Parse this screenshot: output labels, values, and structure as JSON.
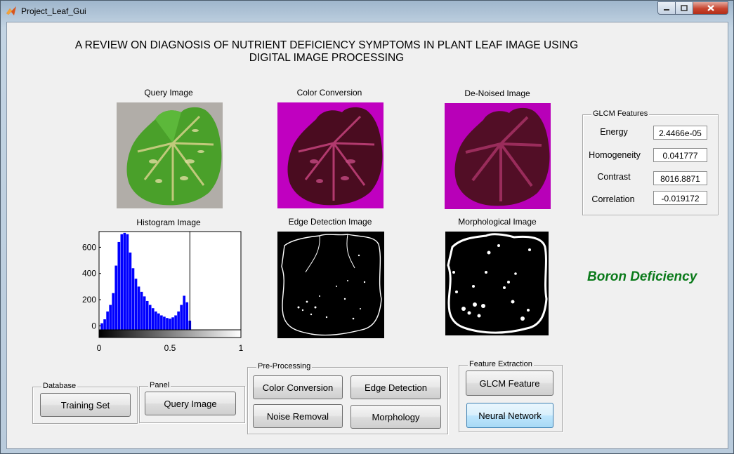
{
  "window": {
    "title": "Project_Leaf_Gui",
    "heading_line1": "A REVIEW ON DIAGNOSIS OF NUTRIENT DEFICIENCY SYMPTOMS IN PLANT LEAF IMAGE USING",
    "heading_line2": "DIGITAL IMAGE PROCESSING"
  },
  "images": {
    "query": "Query Image",
    "color": "Color Conversion",
    "denoised": "De-Noised Image",
    "histogram": "Histogram Image",
    "edge": "Edge Detection Image",
    "morph": "Morphological Image"
  },
  "glcm": {
    "title": "GLCM Features",
    "features": [
      {
        "label": "Energy",
        "value": "2.4466e-05"
      },
      {
        "label": "Homogeneity",
        "value": "0.041777"
      },
      {
        "label": "Contrast",
        "value": "8016.8871"
      },
      {
        "label": "Correlation",
        "value": "-0.019172"
      }
    ]
  },
  "result": "Boron Deficiency",
  "panels": {
    "database": {
      "title": "Database",
      "button": "Training Set"
    },
    "panel": {
      "title": "Panel",
      "button": "Query Image"
    },
    "preprocessing": {
      "title": "Pre-Processing",
      "buttons": [
        "Color Conversion",
        "Edge Detection",
        "Noise Removal",
        "Morphology"
      ]
    },
    "feature_extraction": {
      "title": "Feature Extraction",
      "buttons": [
        "GLCM Feature",
        "Neural Network"
      ]
    }
  },
  "chart_data": {
    "type": "bar",
    "title": "Histogram Image",
    "xlabel": "",
    "ylabel": "",
    "xlim": [
      0,
      1
    ],
    "ylim": [
      -30,
      720
    ],
    "yticks": [
      0,
      200,
      400,
      600
    ],
    "xticks": [
      0,
      0.5,
      1
    ],
    "bar_color": "#0000ff",
    "x": [
      0.02,
      0.04,
      0.06,
      0.08,
      0.1,
      0.12,
      0.14,
      0.16,
      0.18,
      0.2,
      0.22,
      0.24,
      0.26,
      0.28,
      0.3,
      0.32,
      0.34,
      0.36,
      0.38,
      0.4,
      0.42,
      0.44,
      0.46,
      0.48,
      0.5,
      0.52,
      0.54,
      0.56,
      0.58,
      0.6,
      0.62,
      0.64
    ],
    "values": [
      20,
      50,
      110,
      160,
      250,
      460,
      640,
      700,
      710,
      700,
      560,
      440,
      360,
      300,
      260,
      225,
      190,
      160,
      135,
      110,
      95,
      80,
      70,
      60,
      55,
      65,
      80,
      110,
      160,
      230,
      180,
      40
    ]
  },
  "colors": {
    "result_text": "#0a7a1a",
    "histogram_bars": "#0000ff",
    "conversion_bg": "#c000c0"
  }
}
